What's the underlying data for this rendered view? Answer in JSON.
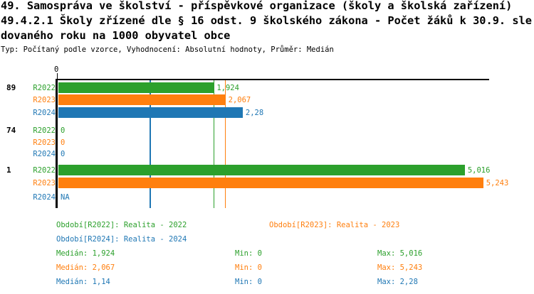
{
  "title": {
    "line1": "49. Samospráva ve školství - příspěvkové organizace (školy a školská zařízení)",
    "line2": "49.4.2.1 Školy zřízené dle § 16 odst. 9 školského zákona - Počet žáků k 30.9. sle",
    "line3": "dovaného roku na 1000 obyvatel obce",
    "meta": "Typ: Počítaný podle vzorce, Vyhodnocení: Absolutní hodnoty, Průměr: Medián"
  },
  "colors": {
    "R2022": "#2ca02c",
    "R2023": "#ff7f0e",
    "R2024": "#1f77b4",
    "axis": "#000000"
  },
  "chart_data": {
    "type": "bar",
    "orientation": "horizontal",
    "axis_tick_label": "0",
    "xlim": [
      0,
      5.32
    ],
    "grid": false,
    "series_names": [
      "R2022",
      "R2023",
      "R2024"
    ],
    "groups": [
      {
        "label": "89",
        "bars": [
          {
            "series": "R2022",
            "value": 1.924,
            "display": "1,924"
          },
          {
            "series": "R2023",
            "value": 2.067,
            "display": "2,067"
          },
          {
            "series": "R2024",
            "value": 2.28,
            "display": "2,28"
          }
        ]
      },
      {
        "label": "74",
        "bars": [
          {
            "series": "R2022",
            "value": 0,
            "display": "0"
          },
          {
            "series": "R2023",
            "value": 0,
            "display": "0"
          },
          {
            "series": "R2024",
            "value": 0,
            "display": "0"
          }
        ]
      },
      {
        "label": "1",
        "bars": [
          {
            "series": "R2022",
            "value": 5.016,
            "display": "5,016"
          },
          {
            "series": "R2023",
            "value": 5.243,
            "display": "5,243"
          },
          {
            "series": "R2024",
            "value": null,
            "display": "NA"
          }
        ]
      }
    ],
    "median_lines": [
      {
        "series": "R2022",
        "value": 1.924
      },
      {
        "series": "R2023",
        "value": 2.067
      },
      {
        "series": "R2024",
        "value": 1.14
      }
    ],
    "legend": [
      {
        "series": "R2022",
        "label": "Období[R2022]: Realita - 2022"
      },
      {
        "series": "R2024",
        "label": "Období[R2024]: Realita - 2024"
      },
      {
        "series": "R2023",
        "label": "Období[R2023]: Realita - 2023"
      }
    ],
    "stats": [
      {
        "series": "R2022",
        "median": "Medián: 1,924",
        "min": "Min: 0",
        "max": "Max: 5,016"
      },
      {
        "series": "R2023",
        "median": "Medián: 2,067",
        "min": "Min: 0",
        "max": "Max: 5,243"
      },
      {
        "series": "R2024",
        "median": "Medián: 1,14",
        "min": "Min: 0",
        "max": "Max: 2,28"
      }
    ]
  }
}
